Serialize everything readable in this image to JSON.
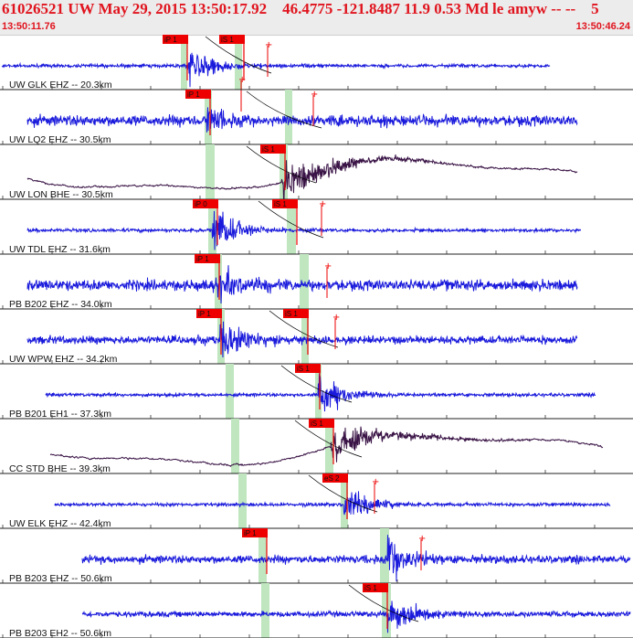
{
  "header": {
    "title": "61026521 UW May 29, 2015 13:50:17.92    46.4775 -121.8487 11.9 0.53 Md le amyw -- --    5",
    "start_time": "13:50:11.76",
    "end_time": "13:50:46.24"
  },
  "colors": {
    "header_text": "#e0141e",
    "trace_short_period": "#1a1adc",
    "trace_broadband": "#3a1446",
    "pick_flag": "#ee0000",
    "pick_window": "#bfe6bf",
    "moveout_curve": "#000000"
  },
  "traces": [
    {
      "label": "UW GLK EHZ -- 20.3km",
      "kind": "sp",
      "picks": [
        "iP 1",
        "iS 1"
      ]
    },
    {
      "label": "UW LQ2 EHZ -- 30.5km",
      "kind": "sp",
      "picks": [
        "iP 1"
      ]
    },
    {
      "label": "UW LON BHE -- 30.5km",
      "kind": "bb",
      "picks": [
        "iS 1"
      ]
    },
    {
      "label": "UW TDL EHZ -- 31.6km",
      "kind": "sp",
      "picks": [
        "iP 0",
        "iS 1"
      ]
    },
    {
      "label": "PB B202 EHZ -- 34.0km",
      "kind": "sp",
      "picks": [
        "iP 1"
      ]
    },
    {
      "label": "UW WPW EHZ -- 34.2km",
      "kind": "sp",
      "picks": [
        "iP 1",
        "iS 1"
      ]
    },
    {
      "label": "PB B201 EH1 -- 37.3km",
      "kind": "sp",
      "picks": [
        "iS 1"
      ]
    },
    {
      "label": "CC STD BHE -- 39.3km",
      "kind": "bb",
      "picks": [
        "iS 1"
      ]
    },
    {
      "label": "UW ELK EHZ -- 42.4km",
      "kind": "sp",
      "picks": [
        "eS 2"
      ]
    },
    {
      "label": "PB B203 EHZ -- 50.6km",
      "kind": "sp",
      "picks": [
        "iP 1"
      ]
    },
    {
      "label": "PB B203 EH2 -- 50.6km",
      "kind": "sp",
      "picks": [
        "iS 1"
      ]
    }
  ]
}
